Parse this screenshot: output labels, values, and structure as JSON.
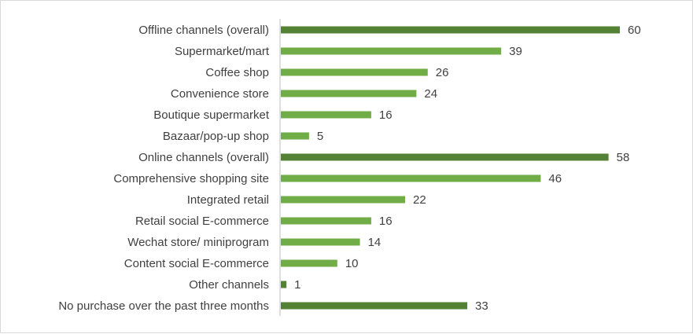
{
  "chart_data": {
    "type": "bar",
    "orientation": "horizontal",
    "categories": [
      "Offline channels (overall)",
      "Supermarket/mart",
      "Coffee shop",
      "Convenience store",
      "Boutique supermarket",
      "Bazaar/pop-up shop",
      "Online channels (overall)",
      "Comprehensive shopping site",
      "Integrated retail",
      "Retail social E-commerce",
      "Wechat store/ miniprogram",
      "Content social E-commerce",
      "Other channels",
      "No purchase over the past three months"
    ],
    "values": [
      60,
      39,
      26,
      24,
      16,
      5,
      58,
      46,
      22,
      16,
      14,
      10,
      1,
      33
    ],
    "overall_flags": [
      true,
      false,
      false,
      false,
      false,
      false,
      true,
      false,
      false,
      false,
      false,
      false,
      true,
      true
    ],
    "colors": {
      "overall": "#548235",
      "detail": "#70ad47",
      "axis": "#bfbfbf",
      "text": "#404040"
    },
    "xlim": [
      0,
      60
    ],
    "grid": false,
    "legend": "none",
    "data_labels": true
  }
}
